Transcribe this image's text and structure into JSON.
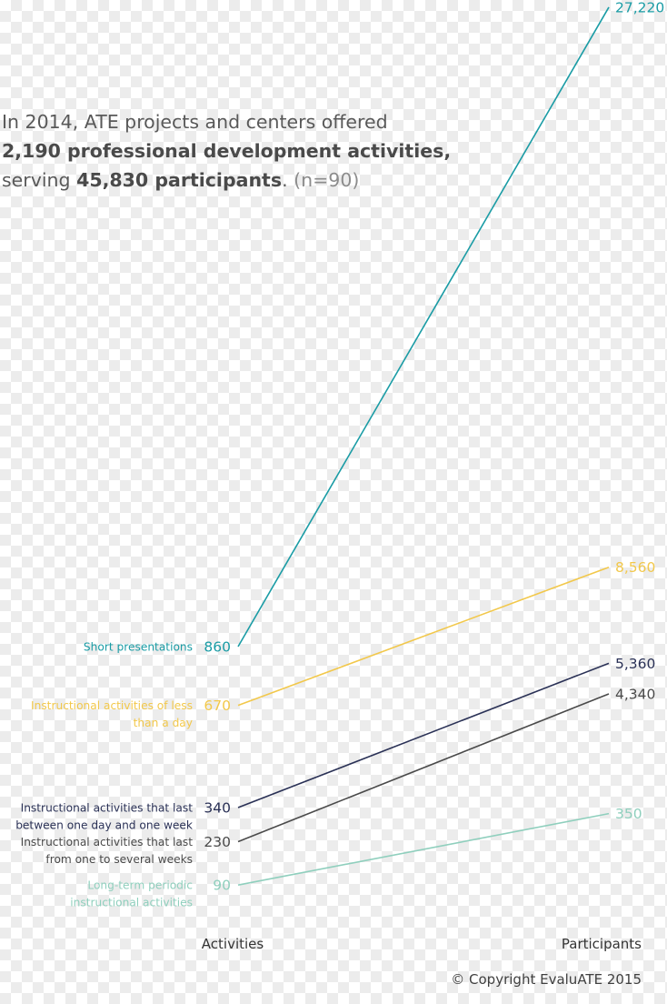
{
  "headline": {
    "line1": "In 2014, ATE projects and centers offered",
    "line2_bold": "2,190 professional development activities,",
    "line3_prefix": "serving ",
    "line3_bold": "45,830 participants",
    "line3_suffix": ".",
    "line3_note": "(n=90)"
  },
  "footer": {
    "copyright": "© Copyright EvaluATE 2015"
  },
  "chart_data": {
    "type": "line",
    "x": [
      "Activities",
      "Participants"
    ],
    "series": [
      {
        "name": "Short presentations",
        "label_lines": [
          "Short presentations"
        ],
        "values": [
          860,
          27220
        ],
        "value_labels": [
          "860",
          "27,220"
        ],
        "color": "#1a9ca5"
      },
      {
        "name": "Instructional activities of less than a day",
        "label_lines": [
          "Instructional activities of less",
          "than a day"
        ],
        "values": [
          670,
          8560
        ],
        "value_labels": [
          "670",
          "8,560"
        ],
        "color": "#f2c84b"
      },
      {
        "name": "Instructional activities that last between one day and one week",
        "label_lines": [
          "Instructional activities that last",
          "between one day and one week"
        ],
        "values": [
          340,
          5360
        ],
        "value_labels": [
          "340",
          "5,360"
        ],
        "color": "#2a3156"
      },
      {
        "name": "Instructional activities that last from one to several weeks",
        "label_lines": [
          "Instructional activities that last",
          "from one to several weeks"
        ],
        "values": [
          230,
          4340
        ],
        "value_labels": [
          "230",
          "4,340"
        ],
        "color": "#4a4a4a"
      },
      {
        "name": "Long-term periodic instructional activities",
        "label_lines": [
          "Long-term periodic",
          "instructional activities"
        ],
        "values": [
          90,
          350
        ],
        "value_labels": [
          "90",
          "350"
        ],
        "color": "#8fcfbd"
      }
    ],
    "grid": false,
    "legend": "none"
  }
}
